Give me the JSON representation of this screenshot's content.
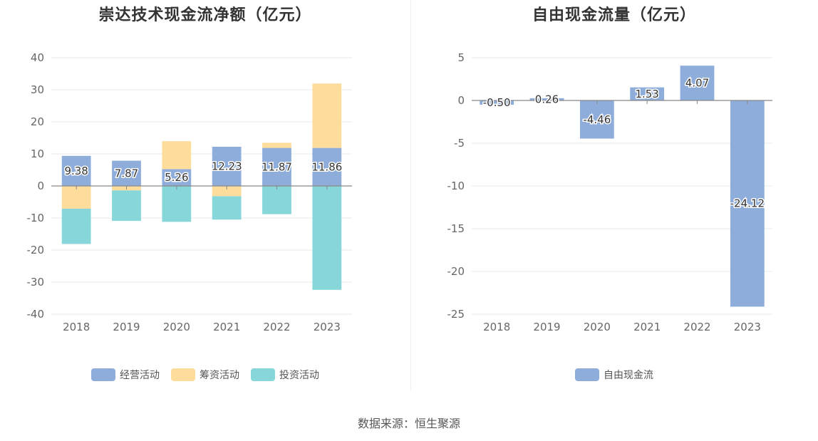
{
  "chart_data": [
    {
      "type": "bar",
      "stacked": true,
      "title": "崇达技术现金流净额（亿元）",
      "categories": [
        "2018",
        "2019",
        "2020",
        "2021",
        "2022",
        "2023"
      ],
      "ylim": [
        -40,
        40
      ],
      "yticks": [
        40,
        30,
        20,
        10,
        0,
        -10,
        -20,
        -30,
        -40
      ],
      "grid": true,
      "legend_position": "bottom",
      "series": [
        {
          "name": "经营活动",
          "color": "#8eaddb",
          "values": [
            9.38,
            7.87,
            5.26,
            12.23,
            11.87,
            11.86
          ],
          "labels": [
            "9.38",
            "7.87",
            "5.26",
            "12.23",
            "11.87",
            "11.86"
          ]
        },
        {
          "name": "筹资活动",
          "color": "#fedc9c",
          "values": [
            -7.1,
            -1.4,
            8.7,
            -3.2,
            1.6,
            20.1
          ]
        },
        {
          "name": "投资活动",
          "color": "#86d6da",
          "values": [
            -11.0,
            -9.5,
            -11.2,
            -7.3,
            -8.8,
            -32.4
          ]
        }
      ]
    },
    {
      "type": "bar",
      "title": "自由现金流量（亿元）",
      "categories": [
        "2018",
        "2019",
        "2020",
        "2021",
        "2022",
        "2023"
      ],
      "ylim": [
        -25,
        5
      ],
      "yticks": [
        5,
        0,
        -5,
        -10,
        -15,
        -20,
        -25
      ],
      "grid": true,
      "legend_position": "bottom",
      "series": [
        {
          "name": "自由现金流",
          "color": "#8eaddb",
          "values": [
            -0.5,
            0.26,
            -4.46,
            1.53,
            4.07,
            -24.12
          ],
          "labels": [
            "-0.50",
            "0.26",
            "-4.46",
            "1.53",
            "4.07",
            "-24.12"
          ]
        }
      ]
    }
  ],
  "source": "数据来源：恒生聚源"
}
